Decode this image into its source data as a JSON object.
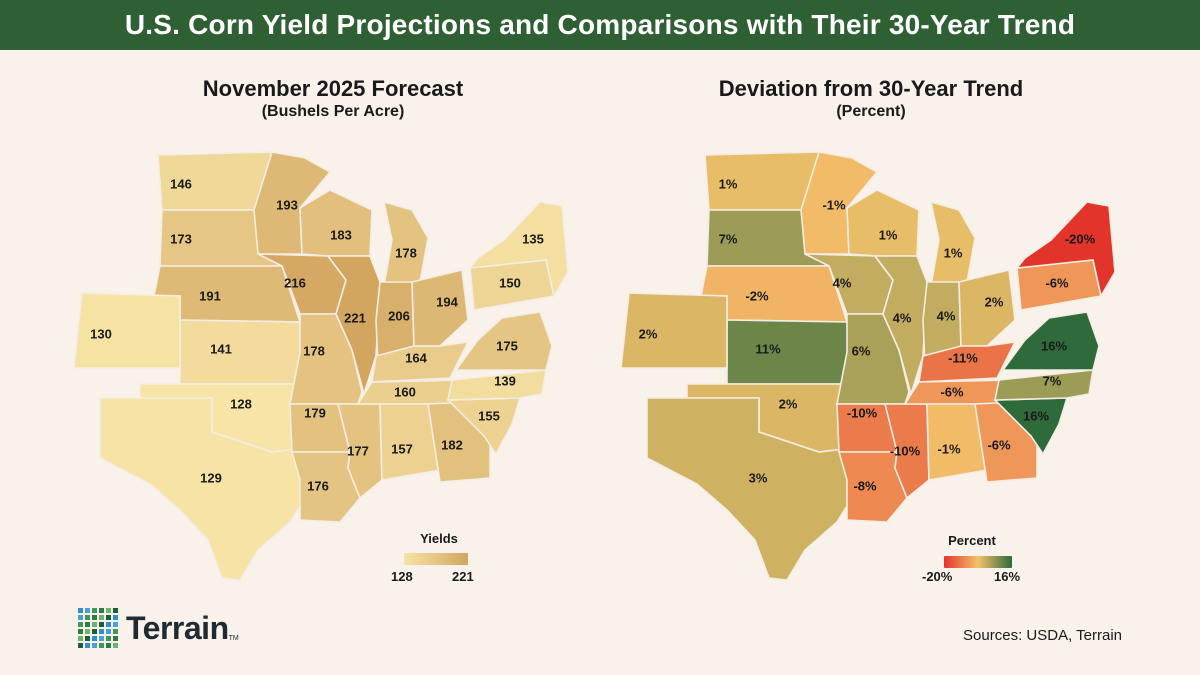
{
  "header": {
    "title": "U.S. Corn Yield Projections and Comparisons with Their 30-Year Trend"
  },
  "left_panel": {
    "title": "November 2025 Forecast",
    "subtitle": "(Bushels Per Acre)",
    "legend": {
      "title": "Yields",
      "min_label": "128",
      "max_label": "221",
      "min_color": "#f7e4a6",
      "max_color": "#d3a660"
    }
  },
  "right_panel": {
    "title": "Deviation from 30-Year Trend",
    "subtitle": "(Percent)",
    "legend": {
      "title": "Percent",
      "min_label": "-20%",
      "max_label": "16%",
      "low_color": "#e3342b",
      "mid_color": "#f3c26b",
      "high_color": "#2f6a3a"
    }
  },
  "chart_data": {
    "type": "choropleth",
    "states": [
      {
        "abbr": "ND",
        "yield": 146,
        "deviation": 1
      },
      {
        "abbr": "SD",
        "yield": 173,
        "deviation": 7
      },
      {
        "abbr": "NE",
        "yield": 191,
        "deviation": -2
      },
      {
        "abbr": "KS",
        "yield": 141,
        "deviation": 11
      },
      {
        "abbr": "OK",
        "yield": 128,
        "deviation": 2
      },
      {
        "abbr": "TX",
        "yield": 129,
        "deviation": 3
      },
      {
        "abbr": "CO",
        "yield": 130,
        "deviation": 2
      },
      {
        "abbr": "MN",
        "yield": 193,
        "deviation": -1
      },
      {
        "abbr": "IA",
        "yield": 216,
        "deviation": 4
      },
      {
        "abbr": "MO",
        "yield": 178,
        "deviation": 6
      },
      {
        "abbr": "AR",
        "yield": 179,
        "deviation": -10
      },
      {
        "abbr": "LA",
        "yield": 176,
        "deviation": -8
      },
      {
        "abbr": "WI",
        "yield": 183,
        "deviation": 1
      },
      {
        "abbr": "IL",
        "yield": 221,
        "deviation": 4
      },
      {
        "abbr": "MS",
        "yield": 177,
        "deviation": -10
      },
      {
        "abbr": "MI",
        "yield": 178,
        "deviation": 1
      },
      {
        "abbr": "IN",
        "yield": 206,
        "deviation": 4
      },
      {
        "abbr": "OH",
        "yield": 194,
        "deviation": 2
      },
      {
        "abbr": "KY",
        "yield": 164,
        "deviation": -11
      },
      {
        "abbr": "TN",
        "yield": 160,
        "deviation": -6
      },
      {
        "abbr": "AL",
        "yield": 157,
        "deviation": -1
      },
      {
        "abbr": "GA",
        "yield": 182,
        "deviation": -6
      },
      {
        "abbr": "SC",
        "yield": 155,
        "deviation": 16
      },
      {
        "abbr": "NC",
        "yield": 139,
        "deviation": 7
      },
      {
        "abbr": "VA",
        "yield": 175,
        "deviation": 16
      },
      {
        "abbr": "PA",
        "yield": 150,
        "deviation": -6
      },
      {
        "abbr": "NY",
        "yield": 135,
        "deviation": -20
      }
    ]
  },
  "footer": {
    "logo_text": "Terrain",
    "logo_tm": "TM",
    "sources": "Sources: USDA, Terrain"
  }
}
